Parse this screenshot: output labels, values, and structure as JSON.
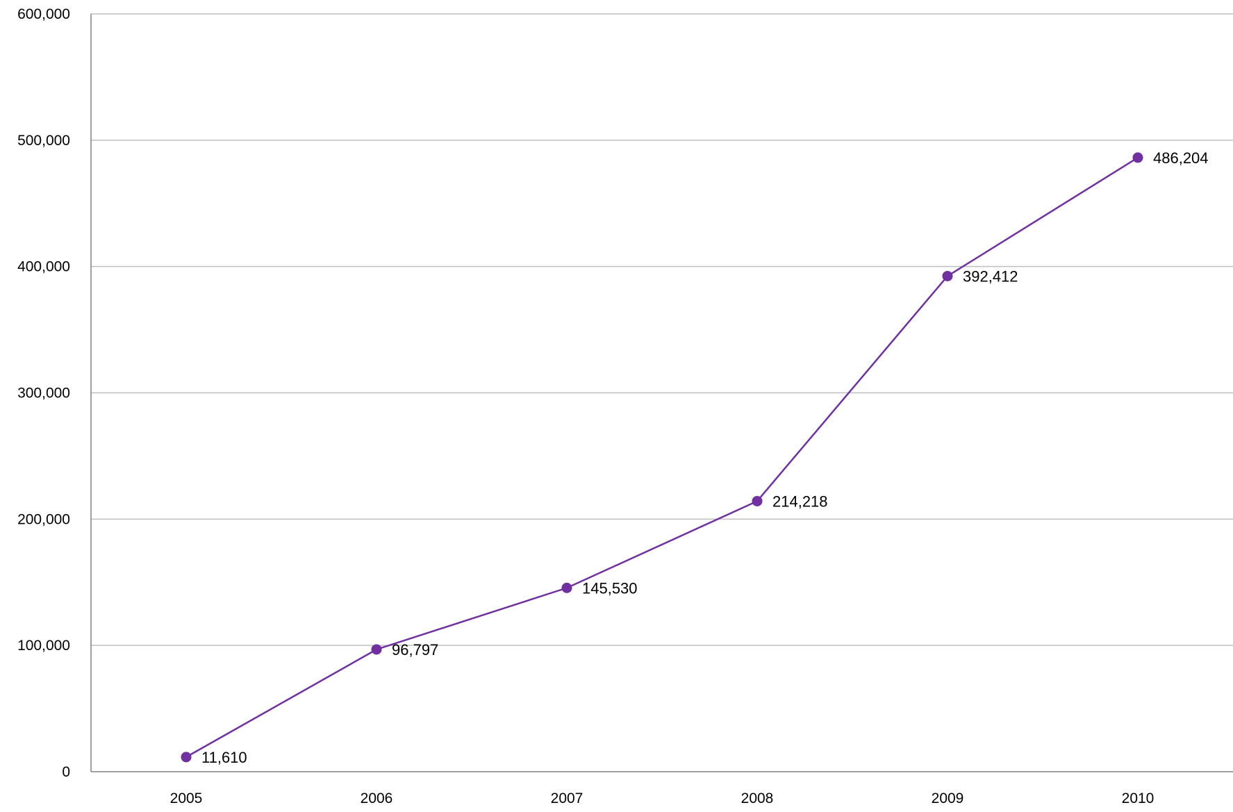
{
  "chart_data": {
    "type": "line",
    "title": "",
    "xlabel": "",
    "ylabel": "",
    "categories": [
      "2005",
      "2006",
      "2007",
      "2008",
      "2009",
      "2010"
    ],
    "series": [
      {
        "values": [
          11610,
          96797,
          145530,
          214218,
          392412,
          486204
        ],
        "data_labels": [
          "11,610",
          "96,797",
          "145,530",
          "214,218",
          "392,412",
          "486,204"
        ],
        "color": "#7030a0"
      }
    ],
    "ylim": [
      0,
      600000
    ],
    "y_ticks": [
      0,
      100000,
      200000,
      300000,
      400000,
      500000,
      600000
    ],
    "y_tick_labels": [
      "0",
      "100,000",
      "200,000",
      "300,000",
      "400,000",
      "500,000",
      "600,000"
    ],
    "grid": true,
    "legend": "none",
    "colors": {
      "gridline": "#bfbfbf",
      "axis": "#808080",
      "text": "#000000"
    }
  }
}
